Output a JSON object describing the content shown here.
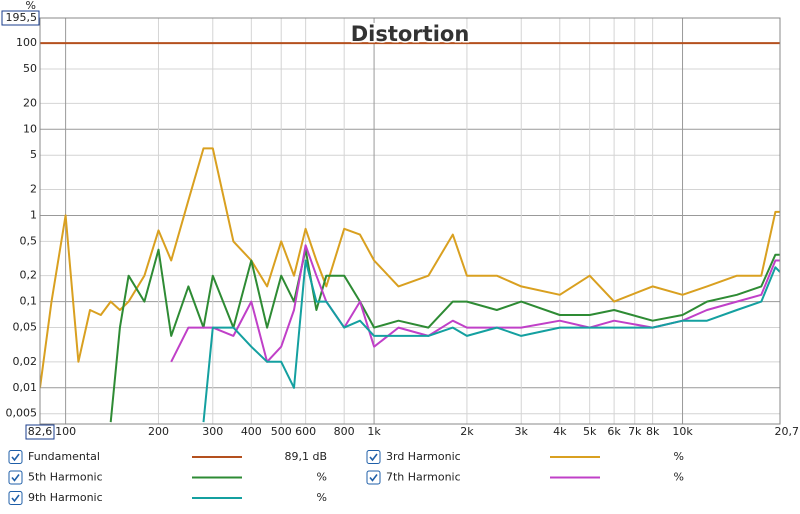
{
  "chart_data": {
    "type": "line",
    "title": "Distortion",
    "y_label": "%",
    "x_scale": "log",
    "y_scale": "log",
    "grid": true,
    "xlim": [
      82.6,
      20700
    ],
    "ylim": [
      0.0038,
      195.5
    ],
    "xticks": [
      {
        "value": 82.6,
        "label": "82,6"
      },
      100,
      200,
      300,
      400,
      500,
      600,
      800,
      {
        "value": 1000,
        "label": "1k"
      },
      {
        "value": 2000,
        "label": "2k"
      },
      {
        "value": 3000,
        "label": "3k"
      },
      {
        "value": 4000,
        "label": "4k"
      },
      {
        "value": 5000,
        "label": "5k"
      },
      {
        "value": 6000,
        "label": "6k"
      },
      {
        "value": 7000,
        "label": "7k"
      },
      {
        "value": 8000,
        "label": "8k"
      },
      {
        "value": 10000,
        "label": "10k"
      },
      {
        "value": 20700,
        "label": "20,7kHz"
      }
    ],
    "yticks": [
      {
        "value": 195.5,
        "label": "195,5"
      },
      100,
      50,
      20,
      10,
      5,
      2,
      1,
      {
        "value": 0.5,
        "label": "0,5"
      },
      {
        "value": 0.2,
        "label": "0,2"
      },
      {
        "value": 0.1,
        "label": "0,1"
      },
      {
        "value": 0.05,
        "label": "0,05"
      },
      {
        "value": 0.02,
        "label": "0,02"
      },
      {
        "value": 0.01,
        "label": "0,01"
      },
      {
        "value": 0.005,
        "label": "0,005"
      }
    ],
    "x": [
      82.6,
      90,
      100,
      110,
      120,
      130,
      140,
      150,
      160,
      180,
      200,
      220,
      250,
      280,
      300,
      350,
      400,
      450,
      500,
      550,
      600,
      650,
      700,
      800,
      900,
      1000,
      1200,
      1500,
      1800,
      2000,
      2500,
      3000,
      4000,
      5000,
      6000,
      8000,
      10000,
      12000,
      15000,
      18000,
      20000,
      20700
    ],
    "series": [
      {
        "name": "Fundamental",
        "color": "#b4501e",
        "readout": "89,1 dB",
        "values": [
          100,
          100,
          100,
          100,
          100,
          100,
          100,
          100,
          100,
          100,
          100,
          100,
          100,
          100,
          100,
          100,
          100,
          100,
          100,
          100,
          100,
          100,
          100,
          100,
          100,
          100,
          100,
          100,
          100,
          100,
          100,
          100,
          100,
          100,
          100,
          100,
          100,
          100,
          100,
          100,
          100,
          100
        ]
      },
      {
        "name": "3rd Harmonic",
        "color": "#d9a020",
        "readout": "%",
        "values": [
          0.01,
          0.1,
          1.0,
          0.02,
          0.08,
          0.07,
          0.1,
          0.08,
          0.1,
          0.2,
          0.67,
          0.3,
          1.5,
          6,
          6,
          0.5,
          0.3,
          0.15,
          0.5,
          0.2,
          0.7,
          0.3,
          0.15,
          0.7,
          0.6,
          0.3,
          0.15,
          0.2,
          0.6,
          0.2,
          0.2,
          0.15,
          0.12,
          0.2,
          0.1,
          0.15,
          0.12,
          0.15,
          0.2,
          0.2,
          1.1,
          1.1
        ]
      },
      {
        "name": "5th Harmonic",
        "color": "#2e8b34",
        "readout": "%",
        "values": [
          null,
          null,
          null,
          null,
          null,
          null,
          0.004,
          0.05,
          0.2,
          0.1,
          0.4,
          0.04,
          0.15,
          0.05,
          0.2,
          0.05,
          0.3,
          0.05,
          0.2,
          0.1,
          0.4,
          0.08,
          0.2,
          0.2,
          0.1,
          0.05,
          0.06,
          0.05,
          0.1,
          0.1,
          0.08,
          0.1,
          0.07,
          0.07,
          0.08,
          0.06,
          0.07,
          0.1,
          0.12,
          0.15,
          0.35,
          0.35
        ]
      },
      {
        "name": "7th Harmonic",
        "color": "#c040c8",
        "readout": "%",
        "values": [
          null,
          null,
          null,
          null,
          null,
          null,
          null,
          null,
          null,
          null,
          null,
          0.02,
          0.05,
          0.05,
          0.05,
          0.04,
          0.1,
          0.02,
          0.03,
          0.08,
          0.45,
          0.2,
          0.1,
          0.05,
          0.1,
          0.03,
          0.05,
          0.04,
          0.06,
          0.05,
          0.05,
          0.05,
          0.06,
          0.05,
          0.06,
          0.05,
          0.06,
          0.08,
          0.1,
          0.12,
          0.3,
          0.3
        ]
      },
      {
        "name": "9th Harmonic",
        "color": "#14a0a0",
        "readout": "%",
        "values": [
          null,
          null,
          null,
          null,
          null,
          null,
          null,
          null,
          null,
          null,
          null,
          null,
          null,
          0.004,
          0.05,
          0.05,
          0.03,
          0.02,
          0.02,
          0.01,
          0.3,
          0.1,
          0.1,
          0.05,
          0.06,
          0.04,
          0.04,
          0.04,
          0.05,
          0.04,
          0.05,
          0.04,
          0.05,
          0.05,
          0.05,
          0.05,
          0.06,
          0.06,
          0.08,
          0.1,
          0.25,
          0.22
        ]
      }
    ]
  }
}
